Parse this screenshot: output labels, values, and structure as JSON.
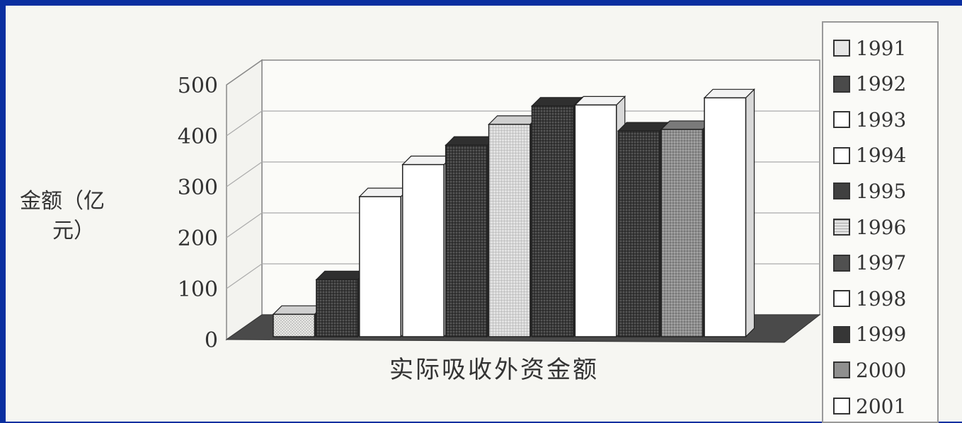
{
  "chart_data": {
    "type": "bar",
    "title": "",
    "xlabel": "实际吸收外资金额",
    "ylabel": "金额（亿元）",
    "ylabel_lines": [
      "金额（亿",
      "元）"
    ],
    "ylim": [
      0,
      500
    ],
    "yticks": [
      "0",
      "100",
      "200",
      "300",
      "400",
      "500"
    ],
    "grid": true,
    "legend_position": "right",
    "categories": [
      "实际吸收外资金额"
    ],
    "series": [
      {
        "name": "1991",
        "values": [
          44
        ],
        "color": "#e6e6e6",
        "pattern": "light-dotted"
      },
      {
        "name": "1992",
        "values": [
          112
        ],
        "color": "#4a4a4a",
        "pattern": "dark-dotted"
      },
      {
        "name": "1993",
        "values": [
          275
        ],
        "color": "#ffffff",
        "pattern": "white"
      },
      {
        "name": "1994",
        "values": [
          338
        ],
        "color": "#ffffff",
        "pattern": "white"
      },
      {
        "name": "1995",
        "values": [
          376
        ],
        "color": "#404040",
        "pattern": "dark-dotted"
      },
      {
        "name": "1996",
        "values": [
          417
        ],
        "color": "#d8d8d8",
        "pattern": "grid"
      },
      {
        "name": "1997",
        "values": [
          453
        ],
        "color": "#505050",
        "pattern": "dark-dotted"
      },
      {
        "name": "1998",
        "values": [
          455
        ],
        "color": "#ffffff",
        "pattern": "white"
      },
      {
        "name": "1999",
        "values": [
          404
        ],
        "color": "#363636",
        "pattern": "dark-dotted"
      },
      {
        "name": "2000",
        "values": [
          407
        ],
        "color": "#8f8f8f",
        "pattern": "mid-dotted"
      },
      {
        "name": "2001",
        "values": [
          469
        ],
        "color": "#ffffff",
        "pattern": "white"
      }
    ]
  }
}
